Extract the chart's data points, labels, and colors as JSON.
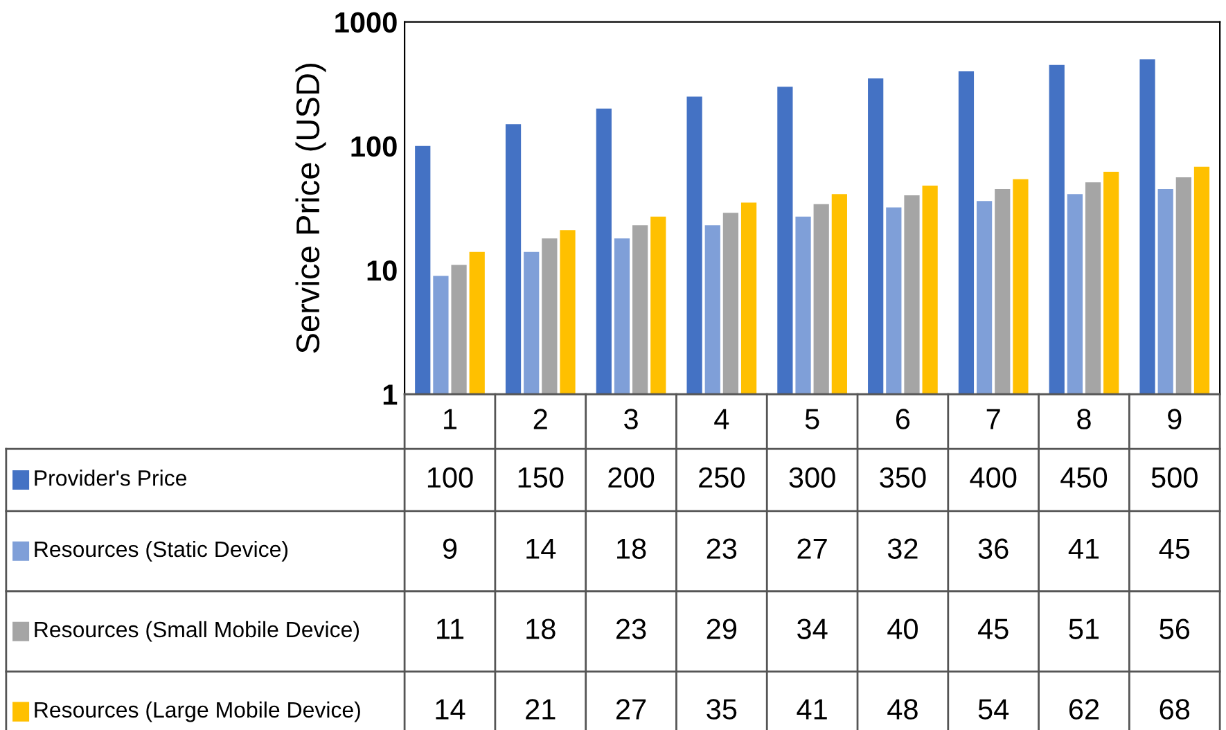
{
  "chart_data": {
    "type": "bar",
    "ylabel": "Service Price (USD)",
    "log": true,
    "ylim": [
      1,
      1000
    ],
    "yticks": [
      1,
      10,
      100,
      1000
    ],
    "grid": false,
    "data_labels": true,
    "legend": "bottom",
    "categories": [
      "1",
      "2",
      "3",
      "4",
      "5",
      "6",
      "7",
      "8",
      "9"
    ],
    "series": [
      {
        "name": "Provider's Price",
        "color": "#4472c4",
        "values": [
          100,
          150,
          200,
          250,
          300,
          350,
          400,
          450,
          500
        ]
      },
      {
        "name": "Resources (Static Device)",
        "color": "#7f9fd8",
        "values": [
          9,
          14,
          18,
          23,
          27,
          32,
          36,
          41,
          45
        ]
      },
      {
        "name": "Resources (Small Mobile Device)",
        "color": "#a5a5a5",
        "values": [
          11,
          18,
          23,
          29,
          34,
          40,
          45,
          51,
          56
        ]
      },
      {
        "name": "Resources (Large Mobile Device)",
        "color": "#ffc000",
        "values": [
          14,
          21,
          27,
          35,
          41,
          48,
          54,
          62,
          68
        ]
      }
    ]
  }
}
